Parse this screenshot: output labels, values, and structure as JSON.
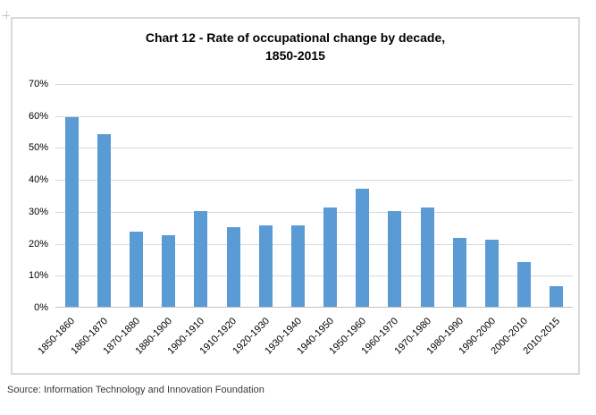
{
  "chart": {
    "title_line1": "Chart 12 - Rate of occupational change by decade,",
    "title_line2": "1850-2015"
  },
  "chart_data": {
    "type": "bar",
    "title": "Chart 12 - Rate of occupational change by decade, 1850-2015",
    "categories": [
      "1850-1860",
      "1860-1870",
      "1870-1880",
      "1880-1900",
      "1900-1910",
      "1910-1920",
      "1920-1930",
      "1930-1940",
      "1940-1950",
      "1950-1960",
      "1960-1970",
      "1970-1980",
      "1980-1990",
      "1990-2000",
      "2000-2010",
      "2010-2015"
    ],
    "values": [
      59.5,
      54,
      23.5,
      22.5,
      30,
      25,
      25.5,
      25.5,
      31,
      37,
      30,
      31,
      21.5,
      21,
      14,
      6.5
    ],
    "xlabel": "",
    "ylabel": "",
    "ylim": [
      0,
      70
    ],
    "ytick_step": 10,
    "ytick_labels": [
      "0%",
      "10%",
      "20%",
      "30%",
      "40%",
      "50%",
      "60%",
      "70%"
    ],
    "grid": true,
    "legend": "none",
    "bar_color": "#5b9bd5",
    "gridline_color": "#d9d9d9",
    "axis_color": "#bfbfbf"
  },
  "source": {
    "text": "Source: Information Technology and Innovation Foundation"
  }
}
